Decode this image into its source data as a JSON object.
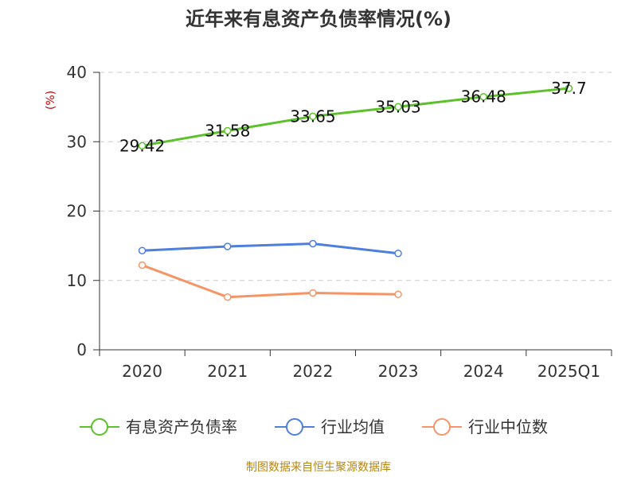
{
  "chart_data": {
    "type": "line",
    "title": "近年来有息资产负债率情况(%)",
    "ylabel": "(%)",
    "xlabel": "",
    "ylim": [
      0,
      40
    ],
    "y_ticks": [
      "0",
      "10",
      "20",
      "30",
      "40"
    ],
    "categories": [
      "2020",
      "2021",
      "2022",
      "2023",
      "2024",
      "2025Q1"
    ],
    "grid": true,
    "legend_position": "bottom",
    "series": [
      {
        "name": "有息资产负债率",
        "color": "#5cc12a",
        "values": [
          29.42,
          31.58,
          33.65,
          35.03,
          36.48,
          37.7
        ],
        "labels": [
          "29.42",
          "31.58",
          "33.65",
          "35.03",
          "36.48",
          "37.7"
        ]
      },
      {
        "name": "行业均值",
        "color": "#4f7fdc",
        "values": [
          14.3,
          14.9,
          15.3,
          13.9,
          null,
          null
        ]
      },
      {
        "name": "行业中位数",
        "color": "#f59566",
        "values": [
          12.2,
          7.6,
          8.2,
          8.0,
          null,
          null
        ]
      }
    ],
    "source": "制图数据来自恒生聚源数据库"
  }
}
